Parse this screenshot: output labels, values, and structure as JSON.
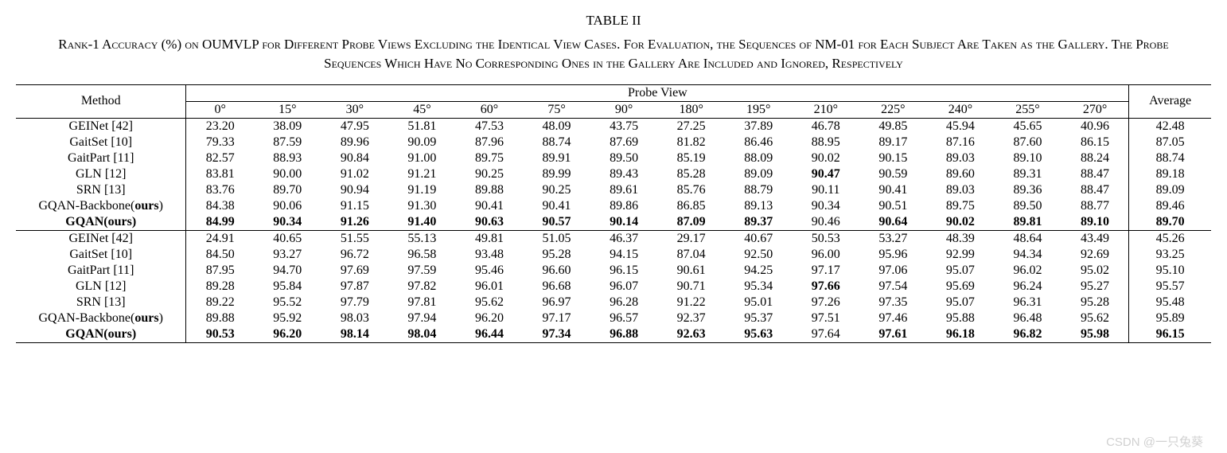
{
  "table_number": "TABLE II",
  "caption": "Rank-1 Accuracy (%) on OUMVLP for Different Probe Views Excluding the Identical View Cases. For Evaluation, the Sequences of NM-01 for Each Subject Are Taken as the Gallery. The Probe Sequences Which Have No Corresponding Ones in the Gallery Are Included and Ignored, Respectively",
  "headers": {
    "method": "Method",
    "probe_view": "Probe View",
    "average": "Average",
    "views": [
      "0°",
      "15°",
      "30°",
      "45°",
      "60°",
      "75°",
      "90°",
      "180°",
      "195°",
      "210°",
      "225°",
      "240°",
      "255°",
      "270°"
    ]
  },
  "block1": {
    "methods": [
      {
        "label": "GEINet [42]",
        "bold": false
      },
      {
        "label": "GaitSet [10]",
        "bold": false
      },
      {
        "label": "GaitPart [11]",
        "bold": false
      },
      {
        "label": "GLN [12]",
        "bold": false
      },
      {
        "label": "SRN [13]",
        "bold": false
      },
      {
        "label_pre": "GQAN-Backbone(",
        "label_ours": "ours",
        "label_post": ")",
        "bold": false
      },
      {
        "label_pre": "GQAN(",
        "label_ours": "ours",
        "label_post": ")",
        "bold": true
      }
    ],
    "rows": [
      [
        "23.20",
        "38.09",
        "47.95",
        "51.81",
        "47.53",
        "48.09",
        "43.75",
        "27.25",
        "37.89",
        "46.78",
        "49.85",
        "45.94",
        "45.65",
        "40.96",
        "42.48"
      ],
      [
        "79.33",
        "87.59",
        "89.96",
        "90.09",
        "87.96",
        "88.74",
        "87.69",
        "81.82",
        "86.46",
        "88.95",
        "89.17",
        "87.16",
        "87.60",
        "86.15",
        "87.05"
      ],
      [
        "82.57",
        "88.93",
        "90.84",
        "91.00",
        "89.75",
        "89.91",
        "89.50",
        "85.19",
        "88.09",
        "90.02",
        "90.15",
        "89.03",
        "89.10",
        "88.24",
        "88.74"
      ],
      [
        "83.81",
        "90.00",
        "91.02",
        "91.21",
        "90.25",
        "89.99",
        "89.43",
        "85.28",
        "89.09",
        "90.47",
        "90.59",
        "89.60",
        "89.31",
        "88.47",
        "89.18"
      ],
      [
        "83.76",
        "89.70",
        "90.94",
        "91.19",
        "89.88",
        "90.25",
        "89.61",
        "85.76",
        "88.79",
        "90.11",
        "90.41",
        "89.03",
        "89.36",
        "88.47",
        "89.09"
      ],
      [
        "84.38",
        "90.06",
        "91.15",
        "91.30",
        "90.41",
        "90.41",
        "89.86",
        "86.85",
        "89.13",
        "90.34",
        "90.51",
        "89.75",
        "89.50",
        "88.77",
        "89.46"
      ],
      [
        "84.99",
        "90.34",
        "91.26",
        "91.40",
        "90.63",
        "90.57",
        "90.14",
        "87.09",
        "89.37",
        "90.46",
        "90.64",
        "90.02",
        "89.81",
        "89.10",
        "89.70"
      ]
    ],
    "bold_cells": [
      [],
      [],
      [],
      [
        9
      ],
      [],
      [],
      [
        0,
        1,
        2,
        3,
        4,
        5,
        6,
        7,
        8,
        10,
        11,
        12,
        13,
        14
      ]
    ]
  },
  "block2": {
    "methods": [
      {
        "label": "GEINet [42]",
        "bold": false
      },
      {
        "label": "GaitSet [10]",
        "bold": false
      },
      {
        "label": "GaitPart [11]",
        "bold": false
      },
      {
        "label": "GLN [12]",
        "bold": false
      },
      {
        "label": "SRN [13]",
        "bold": false
      },
      {
        "label_pre": "GQAN-Backbone(",
        "label_ours": "ours",
        "label_post": ")",
        "bold": false
      },
      {
        "label_pre": "GQAN(",
        "label_ours": "ours",
        "label_post": ")",
        "bold": true
      }
    ],
    "rows": [
      [
        "24.91",
        "40.65",
        "51.55",
        "55.13",
        "49.81",
        "51.05",
        "46.37",
        "29.17",
        "40.67",
        "50.53",
        "53.27",
        "48.39",
        "48.64",
        "43.49",
        "45.26"
      ],
      [
        "84.50",
        "93.27",
        "96.72",
        "96.58",
        "93.48",
        "95.28",
        "94.15",
        "87.04",
        "92.50",
        "96.00",
        "95.96",
        "92.99",
        "94.34",
        "92.69",
        "93.25"
      ],
      [
        "87.95",
        "94.70",
        "97.69",
        "97.59",
        "95.46",
        "96.60",
        "96.15",
        "90.61",
        "94.25",
        "97.17",
        "97.06",
        "95.07",
        "96.02",
        "95.02",
        "95.10"
      ],
      [
        "89.28",
        "95.84",
        "97.87",
        "97.82",
        "96.01",
        "96.68",
        "96.07",
        "90.71",
        "95.34",
        "97.66",
        "97.54",
        "95.69",
        "96.24",
        "95.27",
        "95.57"
      ],
      [
        "89.22",
        "95.52",
        "97.79",
        "97.81",
        "95.62",
        "96.97",
        "96.28",
        "91.22",
        "95.01",
        "97.26",
        "97.35",
        "95.07",
        "96.31",
        "95.28",
        "95.48"
      ],
      [
        "89.88",
        "95.92",
        "98.03",
        "97.94",
        "96.20",
        "97.17",
        "96.57",
        "92.37",
        "95.37",
        "97.51",
        "97.46",
        "95.88",
        "96.48",
        "95.62",
        "95.89"
      ],
      [
        "90.53",
        "96.20",
        "98.14",
        "98.04",
        "96.44",
        "97.34",
        "96.88",
        "92.63",
        "95.63",
        "97.64",
        "97.61",
        "96.18",
        "96.82",
        "95.98",
        "96.15"
      ]
    ],
    "bold_cells": [
      [],
      [],
      [],
      [
        9
      ],
      [],
      [],
      [
        0,
        1,
        2,
        3,
        4,
        5,
        6,
        7,
        8,
        10,
        11,
        12,
        13,
        14
      ]
    ]
  },
  "watermark": "CSDN @一只兔葵",
  "style": {
    "font_family": "Times New Roman",
    "body_fontsize": 16,
    "caption_fontsize": 17,
    "rule_color": "#000000",
    "background": "#ffffff"
  }
}
